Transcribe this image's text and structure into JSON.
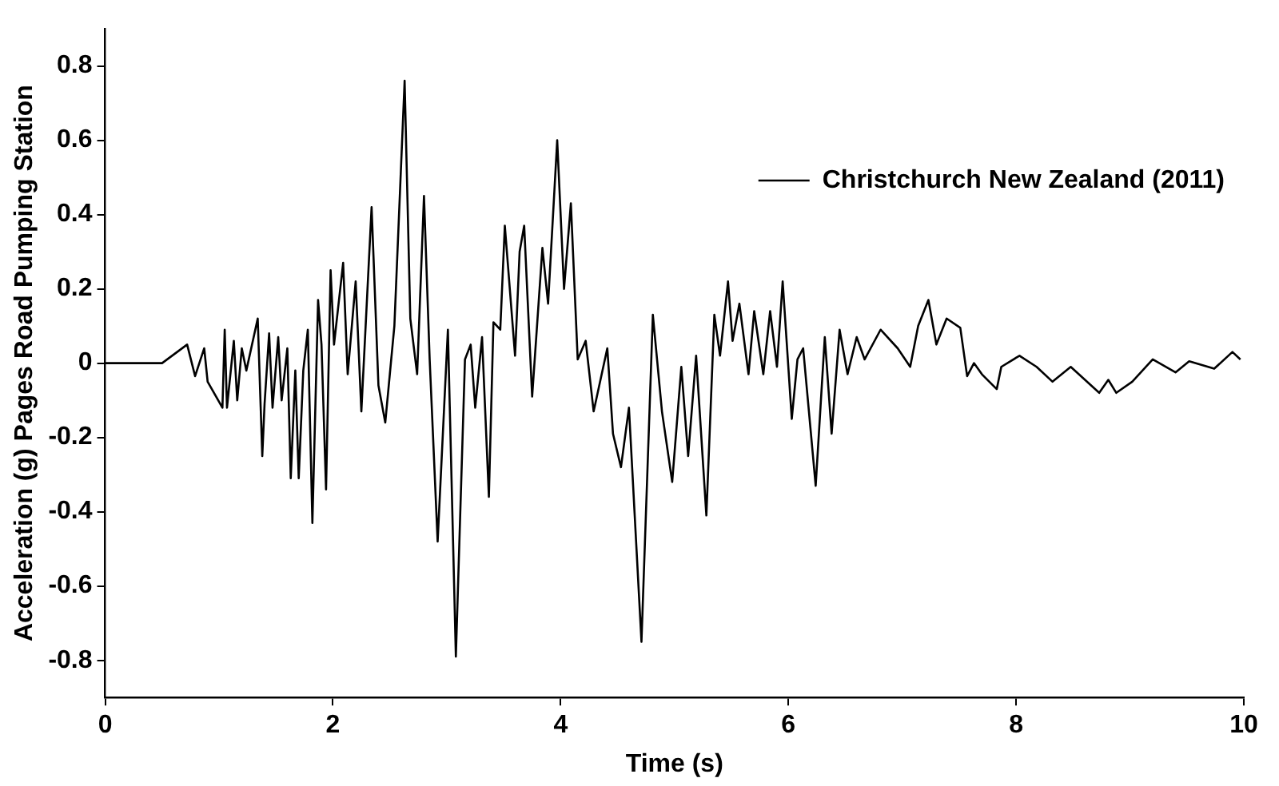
{
  "chart_data": {
    "type": "line",
    "xlabel": "Time (s)",
    "ylabel": "Acceleration (g) Pages Road Pumping Station",
    "xlim": [
      0,
      10
    ],
    "xticks": [
      0,
      2,
      4,
      6,
      8,
      10
    ],
    "ylim": [
      -0.9,
      0.9
    ],
    "yticks": [
      -0.8,
      -0.6,
      -0.4,
      -0.2,
      0,
      0.2,
      0.4,
      0.6,
      0.8
    ],
    "grid": false,
    "legend": "top right",
    "marker": "none",
    "line_style": "solid",
    "series": [
      {
        "name": "Christchurch New Zealand (2011)",
        "color": "#000000",
        "x": [
          0,
          0.5,
          0.72,
          0.79,
          0.87,
          0.9,
          1.03,
          1.05,
          1.07,
          1.13,
          1.16,
          1.2,
          1.24,
          1.34,
          1.38,
          1.4,
          1.44,
          1.47,
          1.52,
          1.55,
          1.6,
          1.63,
          1.67,
          1.7,
          1.74,
          1.78,
          1.82,
          1.87,
          1.9,
          1.94,
          1.98,
          2.01,
          2.09,
          2.13,
          2.2,
          2.25,
          2.34,
          2.4,
          2.46,
          2.54,
          2.63,
          2.68,
          2.74,
          2.8,
          2.85,
          2.92,
          3.01,
          3.08,
          3.16,
          3.21,
          3.25,
          3.31,
          3.37,
          3.41,
          3.47,
          3.51,
          3.6,
          3.64,
          3.68,
          3.75,
          3.84,
          3.89,
          3.97,
          4.03,
          4.09,
          4.15,
          4.22,
          4.29,
          4.41,
          4.46,
          4.53,
          4.6,
          4.71,
          4.81,
          4.89,
          4.98,
          5.06,
          5.12,
          5.19,
          5.28,
          5.35,
          5.4,
          5.47,
          5.51,
          5.57,
          5.65,
          5.7,
          5.78,
          5.84,
          5.9,
          5.95,
          6.03,
          6.08,
          6.13,
          6.24,
          6.32,
          6.38,
          6.45,
          6.52,
          6.6,
          6.67,
          6.81,
          6.96,
          7.07,
          7.14,
          7.23,
          7.3,
          7.39,
          7.51,
          7.57,
          7.63,
          7.7,
          7.83,
          7.87,
          8.03,
          8.18,
          8.32,
          8.48,
          8.73,
          8.81,
          8.88,
          9.02,
          9.2,
          9.4,
          9.52,
          9.74,
          9.9,
          9.97
        ],
        "values": [
          0,
          0,
          0.05,
          -0.035,
          0.04,
          -0.05,
          -0.12,
          0.09,
          -0.12,
          0.06,
          -0.1,
          0.04,
          -0.02,
          0.12,
          -0.25,
          -0.11,
          0.08,
          -0.12,
          0.07,
          -0.1,
          0.04,
          -0.31,
          -0.02,
          -0.31,
          -0.02,
          0.09,
          -0.43,
          0.17,
          0.05,
          -0.34,
          0.25,
          0.05,
          0.27,
          -0.03,
          0.22,
          -0.13,
          0.42,
          -0.06,
          -0.16,
          0.1,
          0.76,
          0.12,
          -0.03,
          0.45,
          0.01,
          -0.48,
          0.09,
          -0.79,
          0.01,
          0.05,
          -0.12,
          0.07,
          -0.36,
          0.11,
          0.09,
          0.37,
          0.02,
          0.3,
          0.37,
          -0.09,
          0.31,
          0.16,
          0.6,
          0.2,
          0.43,
          0.01,
          0.06,
          -0.13,
          0.04,
          -0.19,
          -0.28,
          -0.12,
          -0.75,
          0.13,
          -0.13,
          -0.32,
          -0.01,
          -0.25,
          0.02,
          -0.41,
          0.13,
          0.02,
          0.22,
          0.06,
          0.16,
          -0.03,
          0.14,
          -0.03,
          0.14,
          -0.01,
          0.22,
          -0.15,
          0.01,
          0.04,
          -0.33,
          0.07,
          -0.19,
          0.09,
          -0.03,
          0.07,
          0.01,
          0.09,
          0.04,
          -0.01,
          0.1,
          0.17,
          0.05,
          0.12,
          0.095,
          -0.035,
          0,
          -0.03,
          -0.07,
          -0.01,
          0.02,
          -0.01,
          -0.05,
          -0.01,
          -0.08,
          -0.045,
          -0.08,
          -0.05,
          0.01,
          -0.025,
          0.005,
          -0.015,
          0.03,
          0.01
        ]
      }
    ]
  }
}
